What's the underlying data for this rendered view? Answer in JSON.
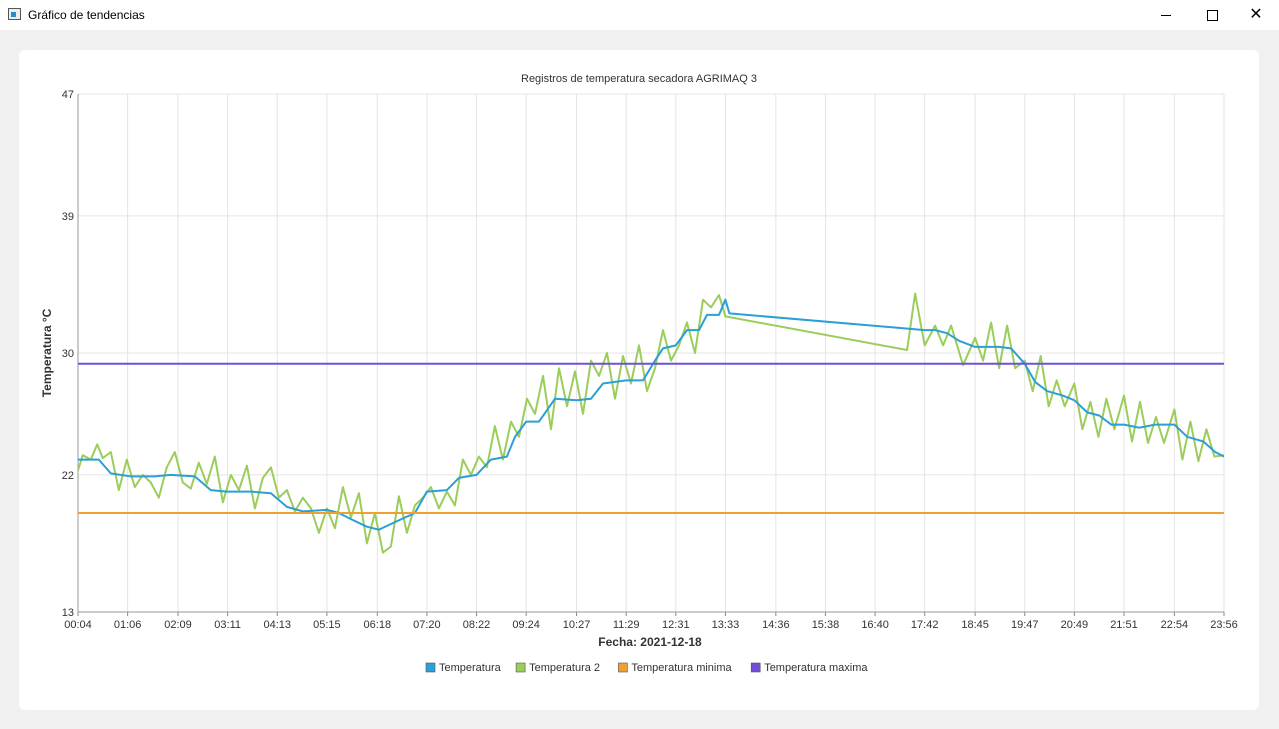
{
  "window": {
    "title": "Gráfico de tendencias",
    "minimize_icon": "minimize-icon",
    "maximize_icon": "maximize-icon",
    "close_icon": "close-icon"
  },
  "chart_data": {
    "type": "line",
    "title": "Registros de temperatura secadora AGRIMAQ 3",
    "xlabel": "Fecha: 2021-12-18",
    "ylabel": "Temperatura °C",
    "ylim": [
      13,
      47
    ],
    "yticks": [
      13,
      22,
      30,
      39,
      47
    ],
    "xlim": [
      "00:04",
      "23:56"
    ],
    "xticks": [
      "00:04",
      "01:06",
      "02:09",
      "03:11",
      "04:13",
      "05:15",
      "06:18",
      "07:20",
      "08:22",
      "09:24",
      "10:27",
      "11:29",
      "12:31",
      "13:33",
      "14:36",
      "15:38",
      "16:40",
      "17:42",
      "18:45",
      "19:47",
      "20:49",
      "21:51",
      "22:54",
      "23:56"
    ],
    "grid": true,
    "legend_position": "bottom",
    "series": [
      {
        "name": "Temperatura",
        "color": "#2a9fd8",
        "points": [
          [
            "00:04",
            23.0
          ],
          [
            "00:30",
            23.0
          ],
          [
            "00:45",
            22.1
          ],
          [
            "01:10",
            21.9
          ],
          [
            "01:40",
            21.9
          ],
          [
            "02:00",
            22.0
          ],
          [
            "02:30",
            21.9
          ],
          [
            "02:50",
            21.0
          ],
          [
            "03:10",
            20.9
          ],
          [
            "03:40",
            20.9
          ],
          [
            "04:05",
            20.8
          ],
          [
            "04:25",
            19.9
          ],
          [
            "04:45",
            19.6
          ],
          [
            "05:15",
            19.7
          ],
          [
            "05:30",
            19.5
          ],
          [
            "05:45",
            19.1
          ],
          [
            "06:05",
            18.6
          ],
          [
            "06:20",
            18.4
          ],
          [
            "06:40",
            18.9
          ],
          [
            "07:05",
            19.5
          ],
          [
            "07:20",
            20.9
          ],
          [
            "07:45",
            21.0
          ],
          [
            "08:00",
            21.8
          ],
          [
            "08:22",
            22.0
          ],
          [
            "08:40",
            23.0
          ],
          [
            "09:00",
            23.2
          ],
          [
            "09:10",
            24.5
          ],
          [
            "09:24",
            25.5
          ],
          [
            "09:40",
            25.5
          ],
          [
            "10:00",
            27.0
          ],
          [
            "10:27",
            26.9
          ],
          [
            "10:45",
            27.0
          ],
          [
            "11:00",
            28.0
          ],
          [
            "11:29",
            28.2
          ],
          [
            "11:50",
            28.2
          ],
          [
            "12:05",
            29.5
          ],
          [
            "12:15",
            30.3
          ],
          [
            "12:31",
            30.5
          ],
          [
            "12:45",
            31.5
          ],
          [
            "13:00",
            31.5
          ],
          [
            "13:10",
            32.5
          ],
          [
            "13:25",
            32.5
          ],
          [
            "13:33",
            33.5
          ],
          [
            "13:38",
            32.6
          ],
          [
            "17:42",
            31.5
          ],
          [
            "17:55",
            31.5
          ],
          [
            "18:10",
            31.3
          ],
          [
            "18:25",
            30.8
          ],
          [
            "18:45",
            30.4
          ],
          [
            "19:15",
            30.4
          ],
          [
            "19:30",
            30.3
          ],
          [
            "19:47",
            29.3
          ],
          [
            "20:00",
            28.1
          ],
          [
            "20:15",
            27.5
          ],
          [
            "20:35",
            27.2
          ],
          [
            "20:49",
            26.9
          ],
          [
            "21:05",
            26.1
          ],
          [
            "21:20",
            25.9
          ],
          [
            "21:35",
            25.3
          ],
          [
            "21:51",
            25.3
          ],
          [
            "22:10",
            25.1
          ],
          [
            "22:30",
            25.3
          ],
          [
            "22:54",
            25.3
          ],
          [
            "23:10",
            24.5
          ],
          [
            "23:30",
            24.2
          ],
          [
            "23:45",
            23.5
          ],
          [
            "23:56",
            23.2
          ]
        ]
      },
      {
        "name": "Temperatura 2",
        "color": "#9acd5a",
        "points": [
          [
            "00:04",
            22.3
          ],
          [
            "00:10",
            23.3
          ],
          [
            "00:20",
            23.0
          ],
          [
            "00:28",
            24.0
          ],
          [
            "00:35",
            23.1
          ],
          [
            "00:45",
            23.5
          ],
          [
            "00:55",
            21.0
          ],
          [
            "01:05",
            23.0
          ],
          [
            "01:15",
            21.2
          ],
          [
            "01:25",
            22.0
          ],
          [
            "01:35",
            21.5
          ],
          [
            "01:45",
            20.5
          ],
          [
            "01:55",
            22.5
          ],
          [
            "02:05",
            23.5
          ],
          [
            "02:15",
            21.5
          ],
          [
            "02:25",
            21.1
          ],
          [
            "02:35",
            22.8
          ],
          [
            "02:45",
            21.4
          ],
          [
            "02:55",
            23.2
          ],
          [
            "03:05",
            20.2
          ],
          [
            "03:15",
            22.0
          ],
          [
            "03:25",
            21.0
          ],
          [
            "03:35",
            22.6
          ],
          [
            "03:45",
            19.8
          ],
          [
            "03:55",
            21.8
          ],
          [
            "04:05",
            22.5
          ],
          [
            "04:15",
            20.5
          ],
          [
            "04:25",
            21.0
          ],
          [
            "04:35",
            19.6
          ],
          [
            "04:45",
            20.5
          ],
          [
            "04:55",
            19.8
          ],
          [
            "05:05",
            18.2
          ],
          [
            "05:15",
            19.8
          ],
          [
            "05:25",
            18.5
          ],
          [
            "05:35",
            21.2
          ],
          [
            "05:45",
            19.2
          ],
          [
            "05:55",
            20.8
          ],
          [
            "06:05",
            17.5
          ],
          [
            "06:15",
            19.5
          ],
          [
            "06:25",
            16.9
          ],
          [
            "06:35",
            17.3
          ],
          [
            "06:45",
            20.6
          ],
          [
            "06:55",
            18.2
          ],
          [
            "07:05",
            20.0
          ],
          [
            "07:15",
            20.5
          ],
          [
            "07:25",
            21.2
          ],
          [
            "07:35",
            19.8
          ],
          [
            "07:45",
            20.9
          ],
          [
            "07:55",
            20.0
          ],
          [
            "08:05",
            23.0
          ],
          [
            "08:15",
            22.0
          ],
          [
            "08:25",
            23.2
          ],
          [
            "08:35",
            22.5
          ],
          [
            "08:45",
            25.2
          ],
          [
            "08:55",
            23.0
          ],
          [
            "09:05",
            25.5
          ],
          [
            "09:15",
            24.5
          ],
          [
            "09:25",
            27.0
          ],
          [
            "09:35",
            26.0
          ],
          [
            "09:45",
            28.5
          ],
          [
            "09:55",
            25.0
          ],
          [
            "10:05",
            29.0
          ],
          [
            "10:15",
            26.5
          ],
          [
            "10:25",
            28.8
          ],
          [
            "10:35",
            26.0
          ],
          [
            "10:45",
            29.5
          ],
          [
            "10:55",
            28.5
          ],
          [
            "11:05",
            30.0
          ],
          [
            "11:15",
            27.0
          ],
          [
            "11:25",
            29.8
          ],
          [
            "11:35",
            28.0
          ],
          [
            "11:45",
            30.5
          ],
          [
            "11:55",
            27.5
          ],
          [
            "12:05",
            29.0
          ],
          [
            "12:15",
            31.5
          ],
          [
            "12:25",
            29.5
          ],
          [
            "12:35",
            30.5
          ],
          [
            "12:45",
            32.0
          ],
          [
            "12:55",
            30.0
          ],
          [
            "13:05",
            33.5
          ],
          [
            "13:15",
            33.0
          ],
          [
            "13:25",
            33.8
          ],
          [
            "13:33",
            32.4
          ],
          [
            "17:20",
            30.2
          ],
          [
            "17:30",
            33.9
          ],
          [
            "17:42",
            30.5
          ],
          [
            "17:55",
            31.8
          ],
          [
            "18:05",
            30.5
          ],
          [
            "18:15",
            31.8
          ],
          [
            "18:30",
            29.2
          ],
          [
            "18:45",
            31.0
          ],
          [
            "18:55",
            29.5
          ],
          [
            "19:05",
            32.0
          ],
          [
            "19:15",
            29.0
          ],
          [
            "19:25",
            31.8
          ],
          [
            "19:35",
            29.0
          ],
          [
            "19:47",
            29.5
          ],
          [
            "19:57",
            27.5
          ],
          [
            "20:07",
            29.8
          ],
          [
            "20:17",
            26.5
          ],
          [
            "20:27",
            28.2
          ],
          [
            "20:37",
            26.5
          ],
          [
            "20:49",
            28.0
          ],
          [
            "20:59",
            25.0
          ],
          [
            "21:09",
            26.8
          ],
          [
            "21:19",
            24.5
          ],
          [
            "21:29",
            27.0
          ],
          [
            "21:39",
            25.0
          ],
          [
            "21:51",
            27.2
          ],
          [
            "22:01",
            24.2
          ],
          [
            "22:11",
            26.8
          ],
          [
            "22:21",
            24.1
          ],
          [
            "22:31",
            25.8
          ],
          [
            "22:41",
            24.1
          ],
          [
            "22:54",
            26.3
          ],
          [
            "23:04",
            23.0
          ],
          [
            "23:14",
            25.5
          ],
          [
            "23:24",
            22.9
          ],
          [
            "23:34",
            25.0
          ],
          [
            "23:44",
            23.2
          ],
          [
            "23:56",
            23.3
          ]
        ]
      },
      {
        "name": "Temperatura minima",
        "color": "#f0a030",
        "points": [
          [
            "00:04",
            19.5
          ],
          [
            "23:56",
            19.5
          ]
        ]
      },
      {
        "name": "Temperatura maxima",
        "color": "#7050d8",
        "points": [
          [
            "00:04",
            29.3
          ],
          [
            "23:56",
            29.3
          ]
        ]
      }
    ]
  }
}
